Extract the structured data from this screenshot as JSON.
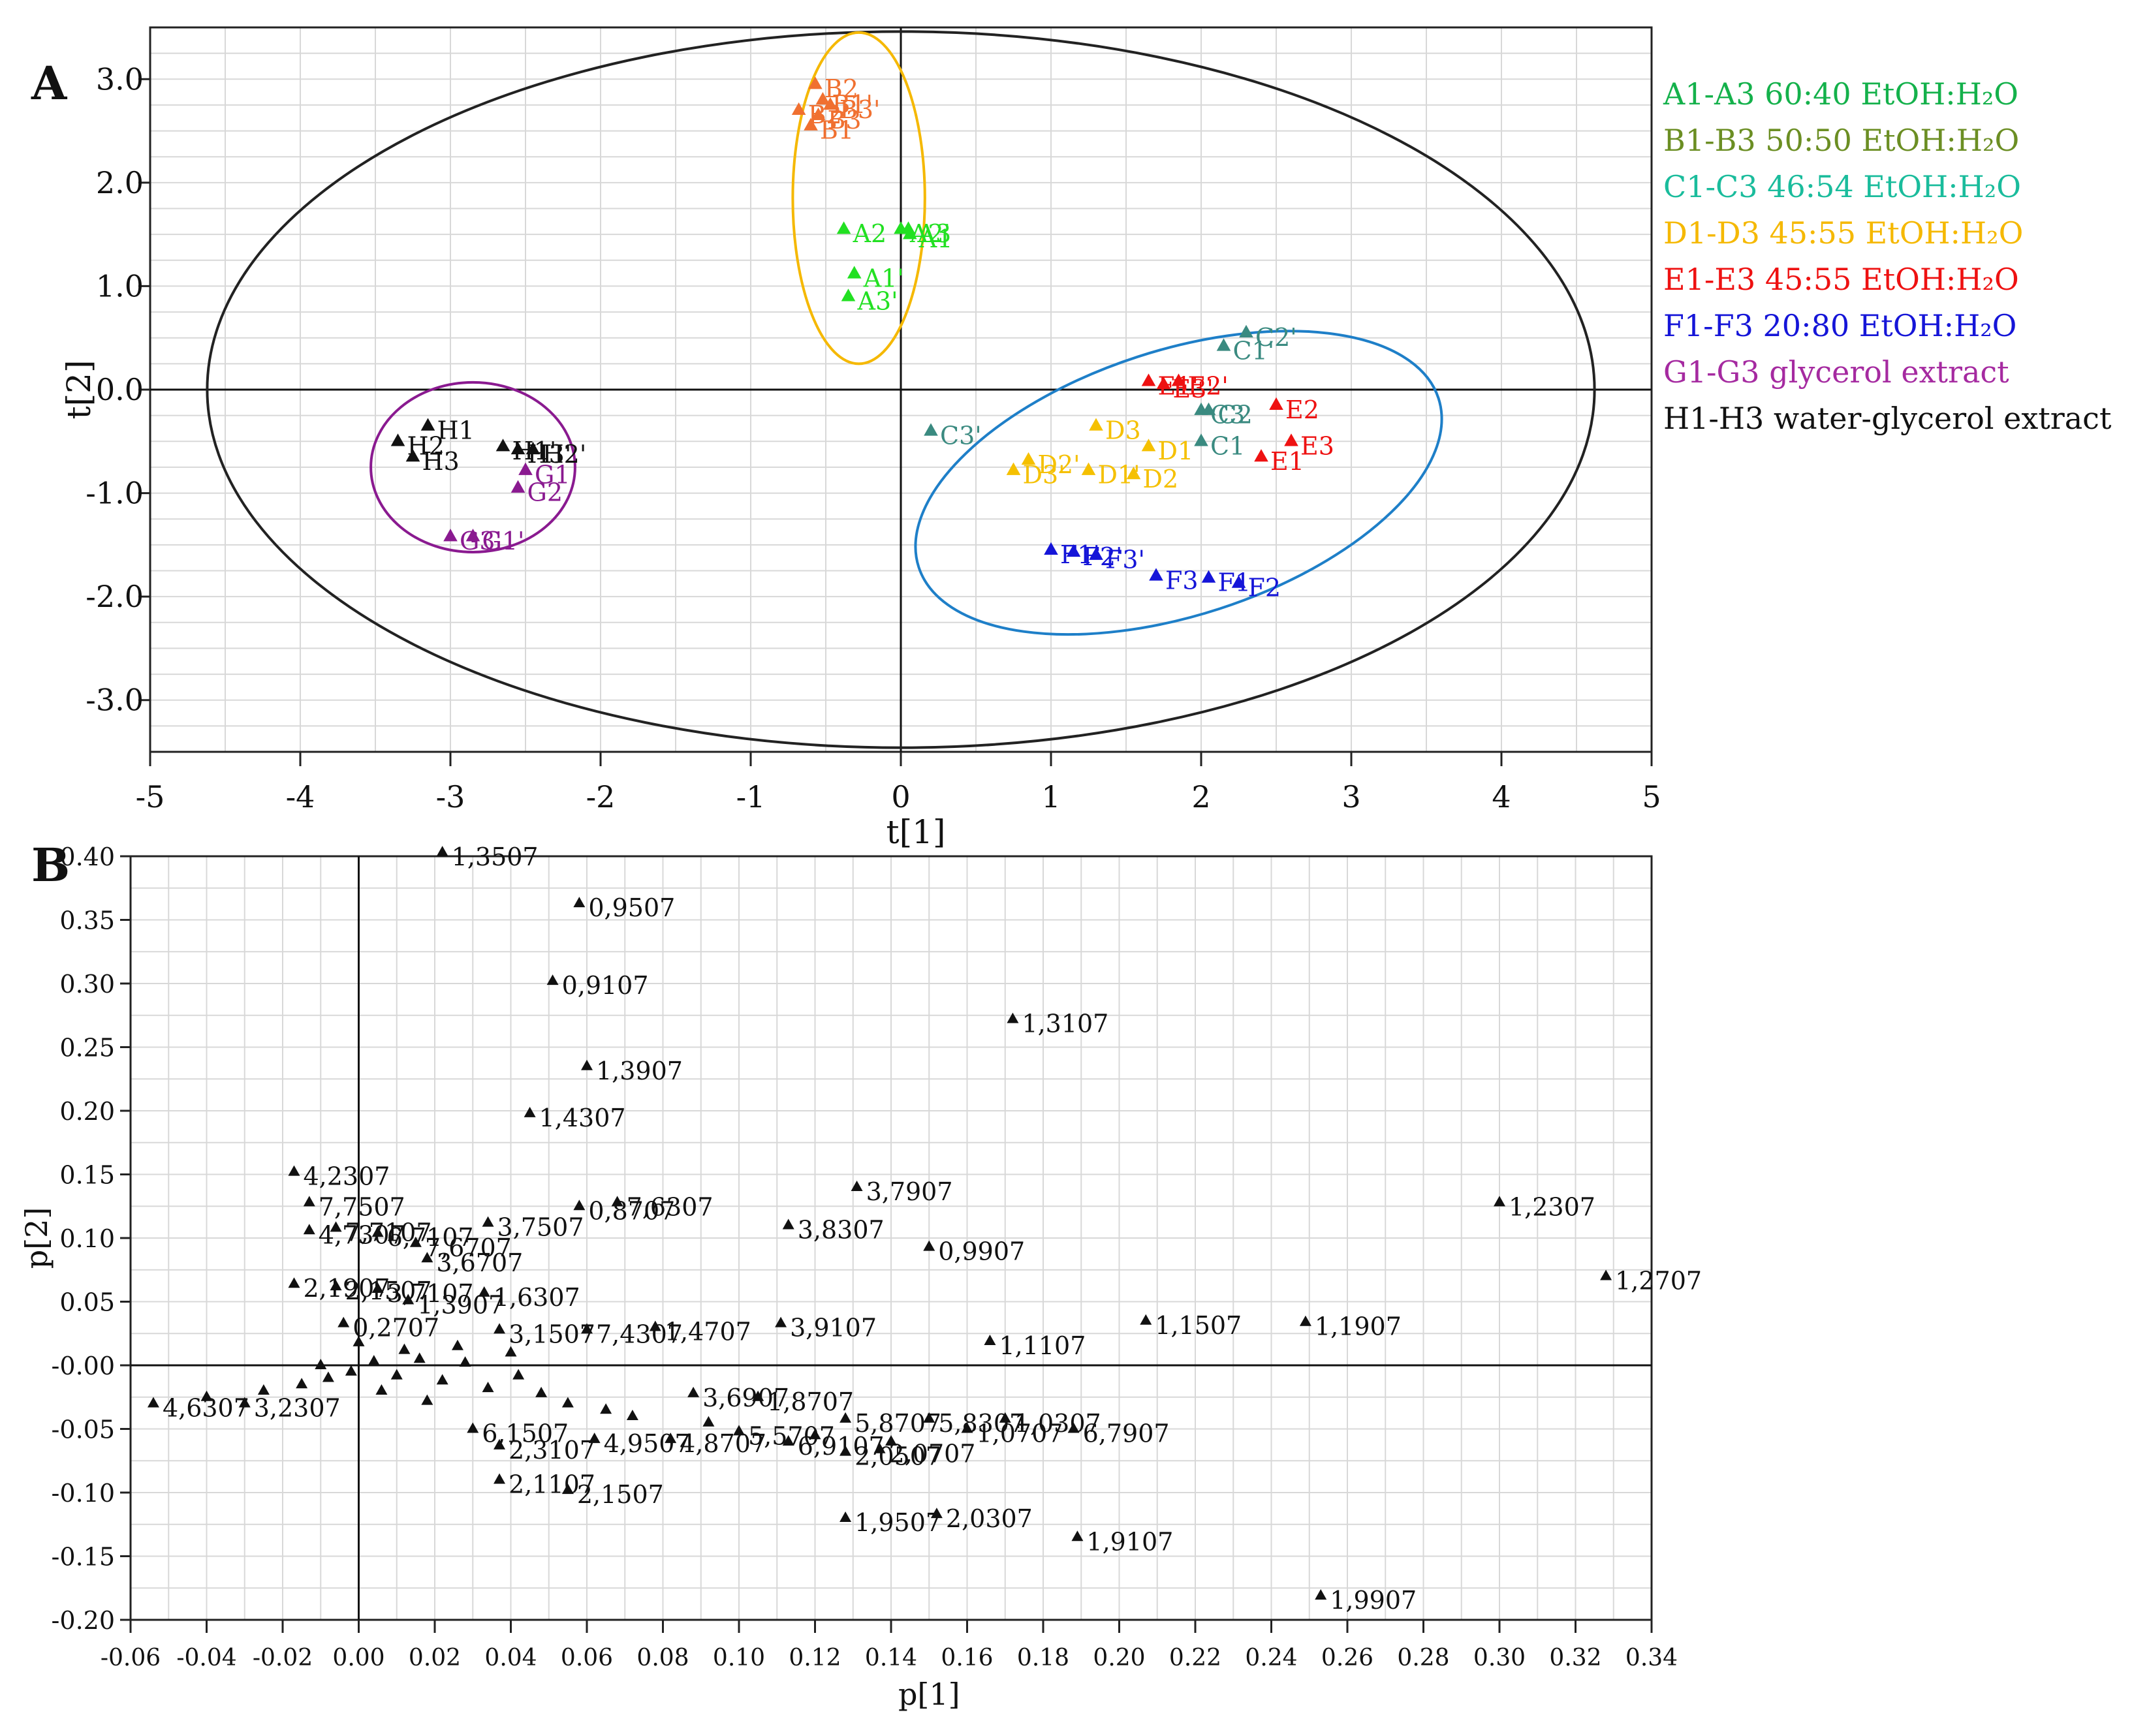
{
  "chart_data": [
    {
      "panel_label": "A",
      "type": "scatter",
      "title": "",
      "xlabel": "t[1]",
      "ylabel": "t[2]",
      "xlim": [
        -5,
        5
      ],
      "ylim": [
        -3.5,
        3.5
      ],
      "xticks": [
        "-5",
        "-4",
        "-3",
        "-2",
        "-1",
        "0",
        "1",
        "2",
        "3",
        "4",
        "5"
      ],
      "yticks": [
        "3.0",
        "2.0",
        "1.0",
        "0.0",
        "-1.0",
        "-2.0",
        "-3.0"
      ],
      "ytick_values": [
        3,
        2,
        1,
        0,
        -1,
        -2,
        -3
      ],
      "grid": true,
      "legend_position": "right",
      "legend": [
        {
          "id": "A",
          "text": "A1-A3  60:40 EtOH:H₂O",
          "color": "#14b14b"
        },
        {
          "id": "B",
          "text": "B1-B3 50:50 EtOH:H₂O",
          "color": "#6b8e23"
        },
        {
          "id": "C",
          "text": "C1-C3 46:54 EtOH:H₂O",
          "color": "#1abc9c"
        },
        {
          "id": "D",
          "text": "D1-D3 45:55 EtOH:H₂O",
          "color": "#f5b800"
        },
        {
          "id": "E",
          "text": "E1-E3 45:55 EtOH:H₂O",
          "color": "#ee1111"
        },
        {
          "id": "F",
          "text": "F1-F3 20:80 EtOH:H₂O",
          "color": "#1515d8"
        },
        {
          "id": "G",
          "text": "G1-G3 glycerol extract",
          "color": "#a52aa0"
        },
        {
          "id": "H",
          "text": "H1-H3 water-glycerol  extract",
          "color": "#111111"
        }
      ],
      "group_colors": {
        "A": "#22e022",
        "B": "#f07030",
        "C": "#3a8a80",
        "D": "#f5c000",
        "E": "#ee1111",
        "F": "#1515d8",
        "G": "#8a1a90",
        "H": "#111111"
      },
      "ellipses": [
        {
          "name": "hotelling-t2",
          "cx": 0.0,
          "cy": 0.0,
          "rx": 4.62,
          "ry": 3.46,
          "color": "#222222"
        },
        {
          "name": "orange-cluster",
          "cx": -0.28,
          "cy": 1.85,
          "rx": 0.44,
          "ry": 1.6,
          "color": "#f5b800"
        },
        {
          "name": "blue-cluster",
          "cx": 1.85,
          "cy": -0.9,
          "rx": 1.82,
          "ry": 1.28,
          "rotate": -18,
          "color": "#1e7fc8"
        },
        {
          "name": "purple-cluster",
          "cx": -2.85,
          "cy": -0.75,
          "rx": 0.68,
          "ry": 0.82,
          "color": "#8a1a90"
        }
      ],
      "points": [
        {
          "g": "B",
          "x": -0.57,
          "y": 2.95,
          "label": "B2"
        },
        {
          "g": "B",
          "x": -0.52,
          "y": 2.8,
          "label": "B1'"
        },
        {
          "g": "B",
          "x": -0.47,
          "y": 2.75,
          "label": "B3'"
        },
        {
          "g": "B",
          "x": -0.68,
          "y": 2.7,
          "label": "B2'"
        },
        {
          "g": "B",
          "x": -0.55,
          "y": 2.65,
          "label": "B3"
        },
        {
          "g": "B",
          "x": -0.6,
          "y": 2.55,
          "label": "B1"
        },
        {
          "g": "A",
          "x": -0.38,
          "y": 1.55,
          "label": "A2"
        },
        {
          "g": "A",
          "x": 0.0,
          "y": 1.55,
          "label": "A2'"
        },
        {
          "g": "A",
          "x": 0.05,
          "y": 1.55,
          "label": "A3"
        },
        {
          "g": "A",
          "x": 0.06,
          "y": 1.5,
          "label": "A1"
        },
        {
          "g": "A",
          "x": -0.31,
          "y": 1.12,
          "label": "A1'"
        },
        {
          "g": "A",
          "x": -0.35,
          "y": 0.9,
          "label": "A3'"
        },
        {
          "g": "C",
          "x": 2.3,
          "y": 0.55,
          "label": "C2'"
        },
        {
          "g": "C",
          "x": 2.15,
          "y": 0.42,
          "label": "C1'"
        },
        {
          "g": "C",
          "x": 2.05,
          "y": -0.2,
          "label": "C2"
        },
        {
          "g": "C",
          "x": 2.0,
          "y": -0.2,
          "label": "C3"
        },
        {
          "g": "C",
          "x": 2.0,
          "y": -0.5,
          "label": "C1"
        },
        {
          "g": "C",
          "x": 0.2,
          "y": -0.4,
          "label": "C3'"
        },
        {
          "g": "E",
          "x": 1.65,
          "y": 0.08,
          "label": "E1'"
        },
        {
          "g": "E",
          "x": 1.75,
          "y": 0.05,
          "label": "E3'"
        },
        {
          "g": "E",
          "x": 1.85,
          "y": 0.08,
          "label": "E2'"
        },
        {
          "g": "E",
          "x": 2.5,
          "y": -0.15,
          "label": "E2"
        },
        {
          "g": "E",
          "x": 2.6,
          "y": -0.5,
          "label": "E3"
        },
        {
          "g": "E",
          "x": 2.4,
          "y": -0.65,
          "label": "E1"
        },
        {
          "g": "D",
          "x": 1.3,
          "y": -0.35,
          "label": "D3"
        },
        {
          "g": "D",
          "x": 1.65,
          "y": -0.55,
          "label": "D1"
        },
        {
          "g": "D",
          "x": 0.85,
          "y": -0.68,
          "label": "D2'"
        },
        {
          "g": "D",
          "x": 0.75,
          "y": -0.78,
          "label": "D3'"
        },
        {
          "g": "D",
          "x": 1.25,
          "y": -0.78,
          "label": "D1'"
        },
        {
          "g": "D",
          "x": 1.55,
          "y": -0.82,
          "label": "D2"
        },
        {
          "g": "F",
          "x": 1.0,
          "y": -1.55,
          "label": "F1'"
        },
        {
          "g": "F",
          "x": 1.15,
          "y": -1.57,
          "label": "F2'"
        },
        {
          "g": "F",
          "x": 1.3,
          "y": -1.6,
          "label": "F3'"
        },
        {
          "g": "F",
          "x": 1.7,
          "y": -1.8,
          "label": "F3"
        },
        {
          "g": "F",
          "x": 2.05,
          "y": -1.82,
          "label": "F1"
        },
        {
          "g": "F",
          "x": 2.25,
          "y": -1.87,
          "label": "F2"
        },
        {
          "g": "H",
          "x": -3.15,
          "y": -0.35,
          "label": "H1"
        },
        {
          "g": "H",
          "x": -3.35,
          "y": -0.5,
          "label": "H2"
        },
        {
          "g": "H",
          "x": -3.25,
          "y": -0.65,
          "label": "H3"
        },
        {
          "g": "H",
          "x": -2.65,
          "y": -0.55,
          "label": "H1'"
        },
        {
          "g": "H",
          "x": -2.55,
          "y": -0.58,
          "label": "H3'"
        },
        {
          "g": "H",
          "x": -2.45,
          "y": -0.58,
          "label": "H2'"
        },
        {
          "g": "G",
          "x": -2.5,
          "y": -0.78,
          "label": "G1"
        },
        {
          "g": "G",
          "x": -2.55,
          "y": -0.95,
          "label": "G2"
        },
        {
          "g": "G",
          "x": -2.85,
          "y": -1.42,
          "label": "G1'"
        },
        {
          "g": "G",
          "x": -3.0,
          "y": -1.42,
          "label": "G3'"
        }
      ]
    },
    {
      "panel_label": "B",
      "type": "scatter",
      "title": "",
      "xlabel": "p[1]",
      "ylabel": "p[2]",
      "xlim": [
        -0.06,
        0.34
      ],
      "ylim": [
        -0.2,
        0.4
      ],
      "xticks": [
        "-0.06",
        "-0.04",
        "-0.02",
        "0.00",
        "0.02",
        "0.04",
        "0.06",
        "0.08",
        "0.10",
        "0.12",
        "0.14",
        "0.16",
        "0.18",
        "0.20",
        "0.22",
        "0.24",
        "0.26",
        "0.28",
        "0.30",
        "0.32",
        "0.34"
      ],
      "xtick_values": [
        -0.06,
        -0.04,
        -0.02,
        0.0,
        0.02,
        0.04,
        0.06,
        0.08,
        0.1,
        0.12,
        0.14,
        0.16,
        0.18,
        0.2,
        0.22,
        0.24,
        0.26,
        0.28,
        0.3,
        0.32,
        0.34
      ],
      "yticks": [
        "0.40",
        "0.35",
        "0.30",
        "0.25",
        "0.20",
        "0.15",
        "0.10",
        "0.05",
        "-0.00",
        "-0.05",
        "-0.10",
        "-0.15",
        "-0.20"
      ],
      "ytick_values": [
        0.4,
        0.35,
        0.3,
        0.25,
        0.2,
        0.15,
        0.1,
        0.05,
        0.0,
        -0.05,
        -0.1,
        -0.15,
        -0.2
      ],
      "grid": true,
      "point_color": "#111111",
      "points": [
        {
          "x": 0.022,
          "y": 0.403,
          "label": "1,3507"
        },
        {
          "x": 0.058,
          "y": 0.363,
          "label": "0,9507"
        },
        {
          "x": 0.051,
          "y": 0.302,
          "label": "0,9107"
        },
        {
          "x": 0.172,
          "y": 0.272,
          "label": "1,3107"
        },
        {
          "x": 0.06,
          "y": 0.235,
          "label": "1,3907"
        },
        {
          "x": 0.045,
          "y": 0.198,
          "label": "1,4307"
        },
        {
          "x": -0.017,
          "y": 0.152,
          "label": "4,2307"
        },
        {
          "x": -0.013,
          "y": 0.128,
          "label": "7,7507"
        },
        {
          "x": 0.131,
          "y": 0.14,
          "label": "3,7907"
        },
        {
          "x": 0.3,
          "y": 0.128,
          "label": "1,2307"
        },
        {
          "x": 0.058,
          "y": 0.125,
          "label": "0,8707"
        },
        {
          "x": 0.068,
          "y": 0.128,
          "label": "7,6307"
        },
        {
          "x": 0.034,
          "y": 0.112,
          "label": "3,7507"
        },
        {
          "x": 0.113,
          "y": 0.11,
          "label": "3,8307"
        },
        {
          "x": 0.15,
          "y": 0.093,
          "label": "0,9907"
        },
        {
          "x": -0.013,
          "y": 0.106,
          "label": "4,7307"
        },
        {
          "x": -0.006,
          "y": 0.108,
          "label": "7,7107"
        },
        {
          "x": 0.005,
          "y": 0.104,
          "label": "6,7107"
        },
        {
          "x": 0.015,
          "y": 0.096,
          "label": "7,6707"
        },
        {
          "x": 0.018,
          "y": 0.084,
          "label": "3,6707"
        },
        {
          "x": 0.328,
          "y": 0.07,
          "label": "1,2707"
        },
        {
          "x": -0.017,
          "y": 0.064,
          "label": "2,1907"
        },
        {
          "x": -0.006,
          "y": 0.062,
          "label": "2,1507"
        },
        {
          "x": 0.005,
          "y": 0.06,
          "label": "3,7107"
        },
        {
          "x": 0.033,
          "y": 0.057,
          "label": "1,6307"
        },
        {
          "x": 0.013,
          "y": 0.051,
          "label": "1,3907"
        },
        {
          "x": 0.111,
          "y": 0.033,
          "label": "3,9107"
        },
        {
          "x": 0.207,
          "y": 0.035,
          "label": "1,1507"
        },
        {
          "x": 0.249,
          "y": 0.034,
          "label": "1,1907"
        },
        {
          "x": 0.078,
          "y": 0.03,
          "label": "1,4707"
        },
        {
          "x": 0.06,
          "y": 0.028,
          "label": "7,4307"
        },
        {
          "x": 0.037,
          "y": 0.028,
          "label": "3,1507"
        },
        {
          "x": -0.004,
          "y": 0.033,
          "label": "0,2707"
        },
        {
          "x": 0.166,
          "y": 0.019,
          "label": "1,1107"
        },
        {
          "x": -0.054,
          "y": -0.03,
          "label": "4,6307"
        },
        {
          "x": -0.03,
          "y": -0.03,
          "label": "3,2307"
        },
        {
          "x": 0.088,
          "y": -0.022,
          "label": "3,6907"
        },
        {
          "x": 0.105,
          "y": -0.025,
          "label": "1,8707"
        },
        {
          "x": 0.128,
          "y": -0.042,
          "label": "5,8707"
        },
        {
          "x": 0.15,
          "y": -0.042,
          "label": "5,8307"
        },
        {
          "x": 0.17,
          "y": -0.042,
          "label": "1,0307"
        },
        {
          "x": 0.16,
          "y": -0.05,
          "label": "1,0707"
        },
        {
          "x": 0.188,
          "y": -0.05,
          "label": "6,7907"
        },
        {
          "x": 0.03,
          "y": -0.05,
          "label": "6,1507"
        },
        {
          "x": 0.037,
          "y": -0.063,
          "label": "2,3107"
        },
        {
          "x": 0.062,
          "y": -0.058,
          "label": "4,9507"
        },
        {
          "x": 0.082,
          "y": -0.058,
          "label": "4,8707"
        },
        {
          "x": 0.1,
          "y": -0.052,
          "label": "5,5707"
        },
        {
          "x": 0.113,
          "y": -0.06,
          "label": "6,9107"
        },
        {
          "x": 0.128,
          "y": -0.068,
          "label": "2,0507"
        },
        {
          "x": 0.137,
          "y": -0.066,
          "label": "2,0707"
        },
        {
          "x": 0.037,
          "y": -0.09,
          "label": "2,1107"
        },
        {
          "x": 0.055,
          "y": -0.098,
          "label": "2,1507"
        },
        {
          "x": 0.128,
          "y": -0.12,
          "label": "1,9507"
        },
        {
          "x": 0.152,
          "y": -0.117,
          "label": "2,0307"
        },
        {
          "x": 0.189,
          "y": -0.135,
          "label": "1,9107"
        },
        {
          "x": 0.253,
          "y": -0.181,
          "label": "1,9907"
        },
        {
          "x": -0.04,
          "y": -0.025,
          "label": ""
        },
        {
          "x": -0.025,
          "y": -0.02,
          "label": ""
        },
        {
          "x": -0.015,
          "y": -0.015,
          "label": ""
        },
        {
          "x": -0.008,
          "y": -0.01,
          "label": ""
        },
        {
          "x": -0.002,
          "y": -0.005,
          "label": ""
        },
        {
          "x": 0.004,
          "y": 0.003,
          "label": ""
        },
        {
          "x": 0.01,
          "y": -0.008,
          "label": ""
        },
        {
          "x": 0.016,
          "y": 0.005,
          "label": ""
        },
        {
          "x": 0.022,
          "y": -0.012,
          "label": ""
        },
        {
          "x": 0.028,
          "y": 0.002,
          "label": ""
        },
        {
          "x": 0.034,
          "y": -0.018,
          "label": ""
        },
        {
          "x": 0.042,
          "y": -0.008,
          "label": ""
        },
        {
          "x": 0.048,
          "y": -0.022,
          "label": ""
        },
        {
          "x": 0.055,
          "y": -0.03,
          "label": ""
        },
        {
          "x": 0.065,
          "y": -0.035,
          "label": ""
        },
        {
          "x": 0.072,
          "y": -0.04,
          "label": ""
        },
        {
          "x": 0.092,
          "y": -0.045,
          "label": ""
        },
        {
          "x": 0.12,
          "y": -0.055,
          "label": ""
        },
        {
          "x": 0.14,
          "y": -0.06,
          "label": ""
        },
        {
          "x": 0.006,
          "y": -0.02,
          "label": ""
        },
        {
          "x": 0.012,
          "y": 0.012,
          "label": ""
        },
        {
          "x": 0.0,
          "y": 0.018,
          "label": ""
        },
        {
          "x": -0.01,
          "y": 0.0,
          "label": ""
        },
        {
          "x": 0.026,
          "y": 0.015,
          "label": ""
        },
        {
          "x": 0.04,
          "y": 0.01,
          "label": ""
        },
        {
          "x": 0.018,
          "y": -0.028,
          "label": ""
        }
      ]
    }
  ]
}
